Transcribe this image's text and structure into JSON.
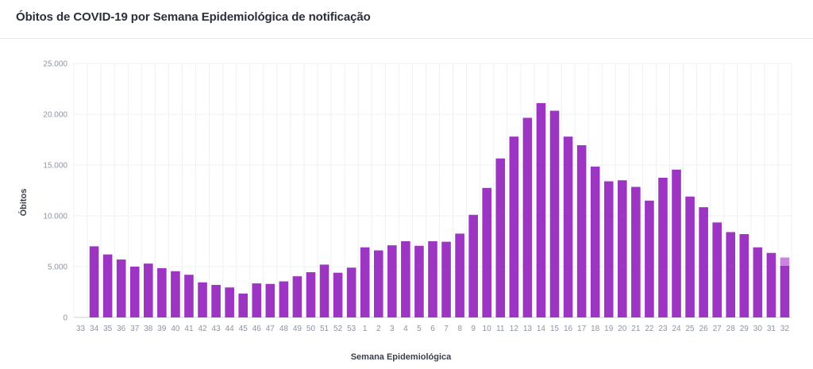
{
  "header": {
    "title": "Óbitos de COVID-19 por Semana Epidemiológica de notificação"
  },
  "colors": {
    "bar": "#9c35c2",
    "bar_pending": "#cf82e6",
    "grid": "#eef0f4",
    "axis": "#c9cdd6"
  },
  "chart_data": {
    "type": "bar",
    "title": "Óbitos de COVID-19 por Semana Epidemiológica de notificação",
    "xlabel": "Semana Epidemiológica",
    "ylabel": "Óbitos",
    "ylim": [
      0,
      25000
    ],
    "yticks": [
      0,
      5000,
      10000,
      15000,
      20000,
      25000
    ],
    "ytick_labels": [
      "0",
      "5.000",
      "10.000",
      "15.000",
      "20.000",
      "25.000"
    ],
    "grid": true,
    "categories": [
      "33",
      "34",
      "35",
      "36",
      "37",
      "38",
      "39",
      "40",
      "41",
      "42",
      "43",
      "44",
      "45",
      "46",
      "47",
      "48",
      "49",
      "50",
      "51",
      "52",
      "53",
      "1",
      "2",
      "3",
      "4",
      "5",
      "6",
      "7",
      "8",
      "9",
      "10",
      "11",
      "12",
      "13",
      "14",
      "15",
      "16",
      "17",
      "18",
      "19",
      "20",
      "21",
      "22",
      "23",
      "24",
      "25",
      "26",
      "27",
      "28",
      "29",
      "30",
      "31",
      "32"
    ],
    "values": [
      0,
      7000,
      6200,
      5700,
      5000,
      5300,
      4850,
      4550,
      4200,
      3450,
      3200,
      2950,
      2350,
      3350,
      3300,
      3550,
      4050,
      4450,
      5200,
      4400,
      4900,
      6900,
      6600,
      7100,
      7500,
      7050,
      7500,
      7450,
      8250,
      10100,
      12750,
      15650,
      17800,
      19650,
      21100,
      20350,
      17800,
      16950,
      14850,
      13400,
      13500,
      12850,
      11500,
      13750,
      14550,
      11900,
      10850,
      9350,
      8400,
      8200,
      6900,
      6350,
      5100
    ],
    "pending": [
      0,
      0,
      0,
      0,
      0,
      0,
      0,
      0,
      0,
      0,
      0,
      0,
      0,
      0,
      0,
      0,
      0,
      0,
      0,
      0,
      0,
      0,
      0,
      0,
      0,
      0,
      0,
      0,
      0,
      0,
      0,
      0,
      0,
      0,
      0,
      0,
      0,
      0,
      0,
      0,
      0,
      0,
      0,
      0,
      0,
      0,
      0,
      0,
      0,
      0,
      0,
      0,
      800
    ]
  }
}
